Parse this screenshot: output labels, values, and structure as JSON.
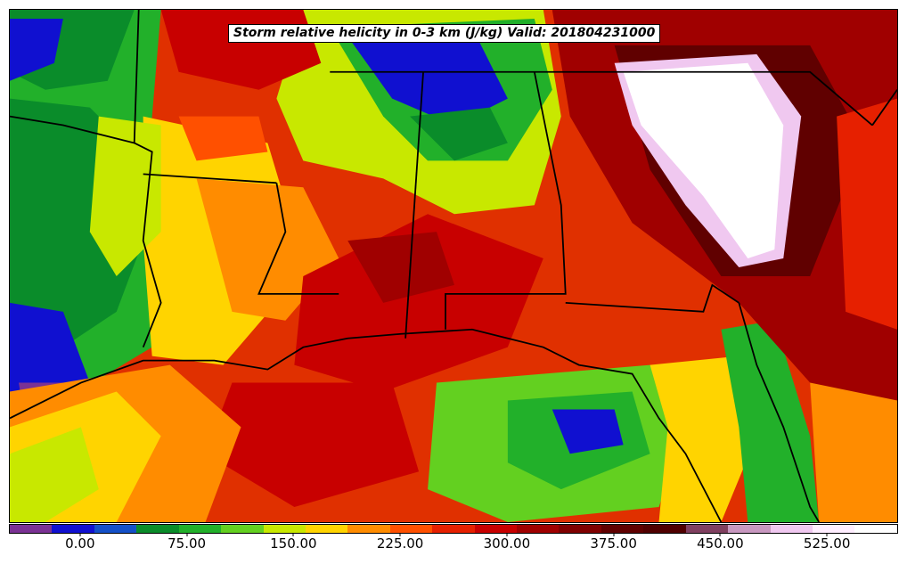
{
  "map": {
    "title": "Storm relative helicity in 0-3 km (J/kg) Valid: 201804231000",
    "variable": "Storm relative helicity in 0-3 km",
    "units": "J/kg",
    "valid_time": "201804231000",
    "region_shown": "U.S. Gulf Coast and Southeast",
    "land_borders_color": "#000000"
  },
  "colorbar": {
    "colors": [
      "#7b3294",
      "#1010d0",
      "#1450c8",
      "#0a8c2a",
      "#22b02a",
      "#63d020",
      "#c8e800",
      "#ffd400",
      "#ff8c00",
      "#ff5000",
      "#e62000",
      "#c80000",
      "#a00000",
      "#800000",
      "#600000",
      "#500000",
      "#804060",
      "#c898c0",
      "#f0c8f0",
      "#ffeeff",
      "#ffffff"
    ],
    "tick_labels": [
      "0.00",
      "75.00",
      "150.00",
      "225.00",
      "300.00",
      "375.00",
      "450.00",
      "525.00"
    ],
    "tick_values": [
      0,
      75,
      150,
      225,
      300,
      375,
      450,
      525
    ],
    "min": -50,
    "max": 575
  }
}
